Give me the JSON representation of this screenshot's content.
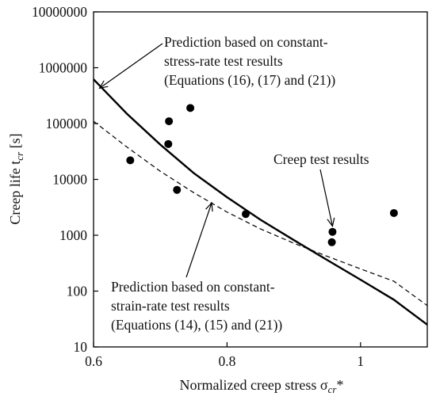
{
  "chart_data": {
    "type": "scatter",
    "title": "",
    "xlabel": "Normalized creep stress σ",
    "xlabel_sub": "cr",
    "xlabel_sup": "*",
    "ylabel": "Creep life t",
    "ylabel_sub": "cr",
    "ylabel_unit": " [s]",
    "xlim": [
      0.6,
      1.1
    ],
    "ylim": [
      10,
      10000000
    ],
    "y_scale": "log",
    "grid": false,
    "x_ticks": [
      "0.6",
      "0.8",
      "1"
    ],
    "y_ticks": [
      "10",
      "100",
      "1000",
      "10000",
      "100000",
      "1000000",
      "10000000"
    ],
    "series": [
      {
        "name": "Creep test results",
        "style": "points",
        "x": [
          0.655,
          0.712,
          0.713,
          0.725,
          0.745,
          0.828,
          0.957,
          0.958,
          1.05
        ],
        "y": [
          22000,
          43000,
          110000,
          6500,
          190000,
          2400,
          750,
          1150,
          2500
        ]
      },
      {
        "name": "Prediction based on constant-stress-rate test results (Equations (16), (17) and (21))",
        "style": "solid",
        "x": [
          0.6,
          0.65,
          0.7,
          0.75,
          0.8,
          0.85,
          0.9,
          0.95,
          1.0,
          1.05,
          1.1
        ],
        "y": [
          620000,
          150000,
          42000,
          13000,
          4800,
          1900,
          820,
          360,
          160,
          70,
          25
        ]
      },
      {
        "name": "Prediction based on constant-strain-rate test results (Equations (14), (15) and (21))",
        "style": "dashed",
        "x": [
          0.6,
          0.65,
          0.7,
          0.75,
          0.8,
          0.85,
          0.9,
          0.95,
          1.0,
          1.05,
          1.1
        ],
        "y": [
          110000,
          38000,
          14000,
          5800,
          2600,
          1300,
          720,
          420,
          250,
          150,
          55
        ]
      }
    ],
    "annotations": {
      "stress_rate": [
        "Prediction based on constant-",
        "stress-rate test results",
        "(Equations (16), (17) and (21))"
      ],
      "strain_rate": [
        "Prediction based on constant-",
        "strain-rate test results",
        "(Equations (14), (15) and (21))"
      ],
      "creep": [
        "Creep test results"
      ]
    }
  }
}
